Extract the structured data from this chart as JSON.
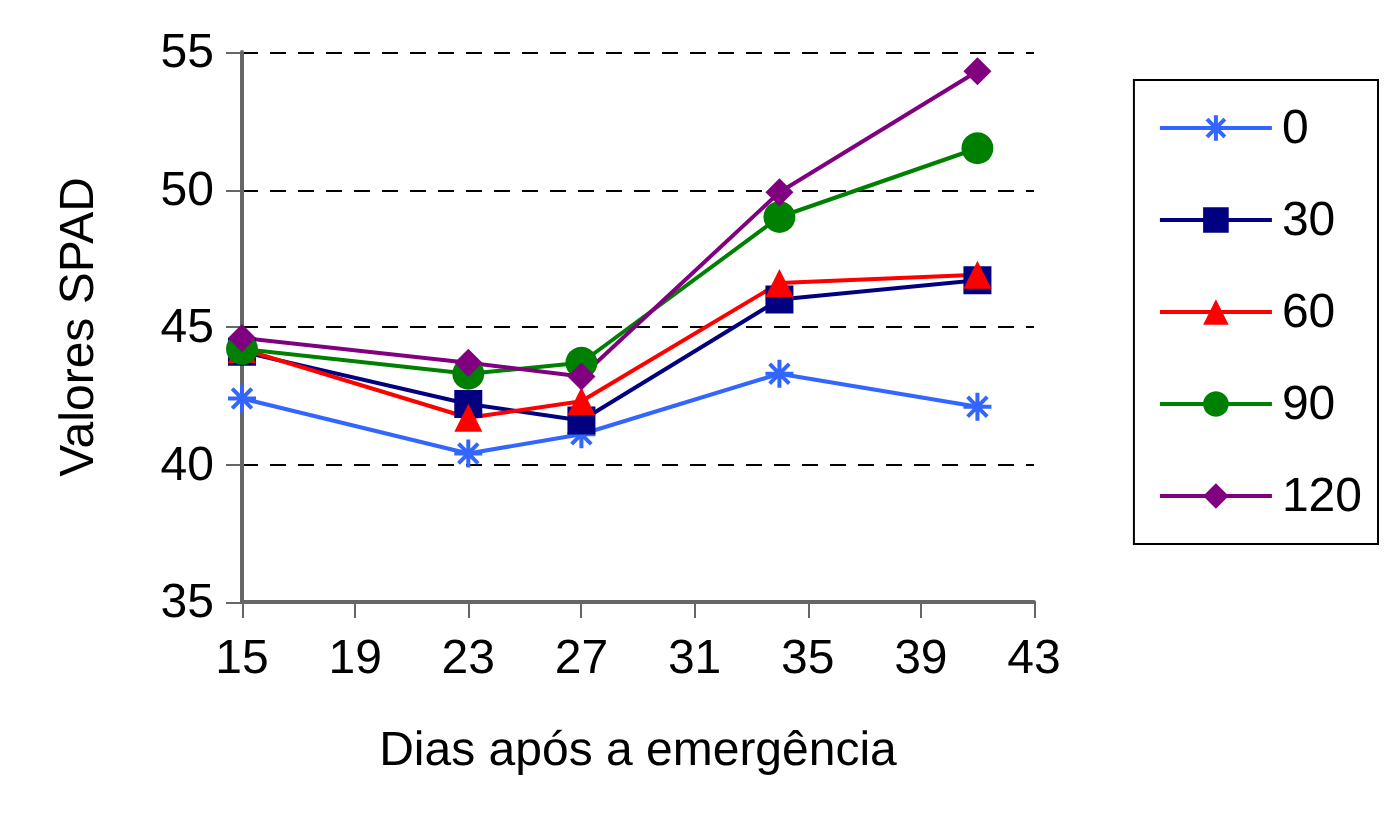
{
  "chart_data": {
    "type": "line",
    "xlabel": "Dias após a emergência",
    "ylabel": "Valores SPAD",
    "x": [
      15,
      23,
      27,
      34,
      41
    ],
    "xlim": [
      15,
      43
    ],
    "xticks": [
      15,
      19,
      23,
      27,
      31,
      35,
      39,
      43
    ],
    "ylim": [
      35,
      55
    ],
    "yticks": [
      35,
      40,
      45,
      50,
      55
    ],
    "grid": "y",
    "legend": "right",
    "series": [
      {
        "name": "0",
        "color": "#3366ff",
        "marker": "cross",
        "values": [
          42.4,
          40.4,
          41.1,
          43.3,
          42.1
        ]
      },
      {
        "name": "30",
        "color": "#000080",
        "marker": "square",
        "values": [
          44.1,
          42.2,
          41.6,
          46.0,
          46.7
        ]
      },
      {
        "name": "60",
        "color": "#ff0000",
        "marker": "triangle",
        "values": [
          44.2,
          41.7,
          42.3,
          46.6,
          46.9
        ]
      },
      {
        "name": "90",
        "color": "#008000",
        "marker": "circle",
        "values": [
          44.2,
          43.3,
          43.7,
          49.0,
          51.5
        ]
      },
      {
        "name": "120",
        "color": "#800080",
        "marker": "diamond",
        "values": [
          44.6,
          43.7,
          43.2,
          49.9,
          54.3
        ]
      }
    ]
  }
}
